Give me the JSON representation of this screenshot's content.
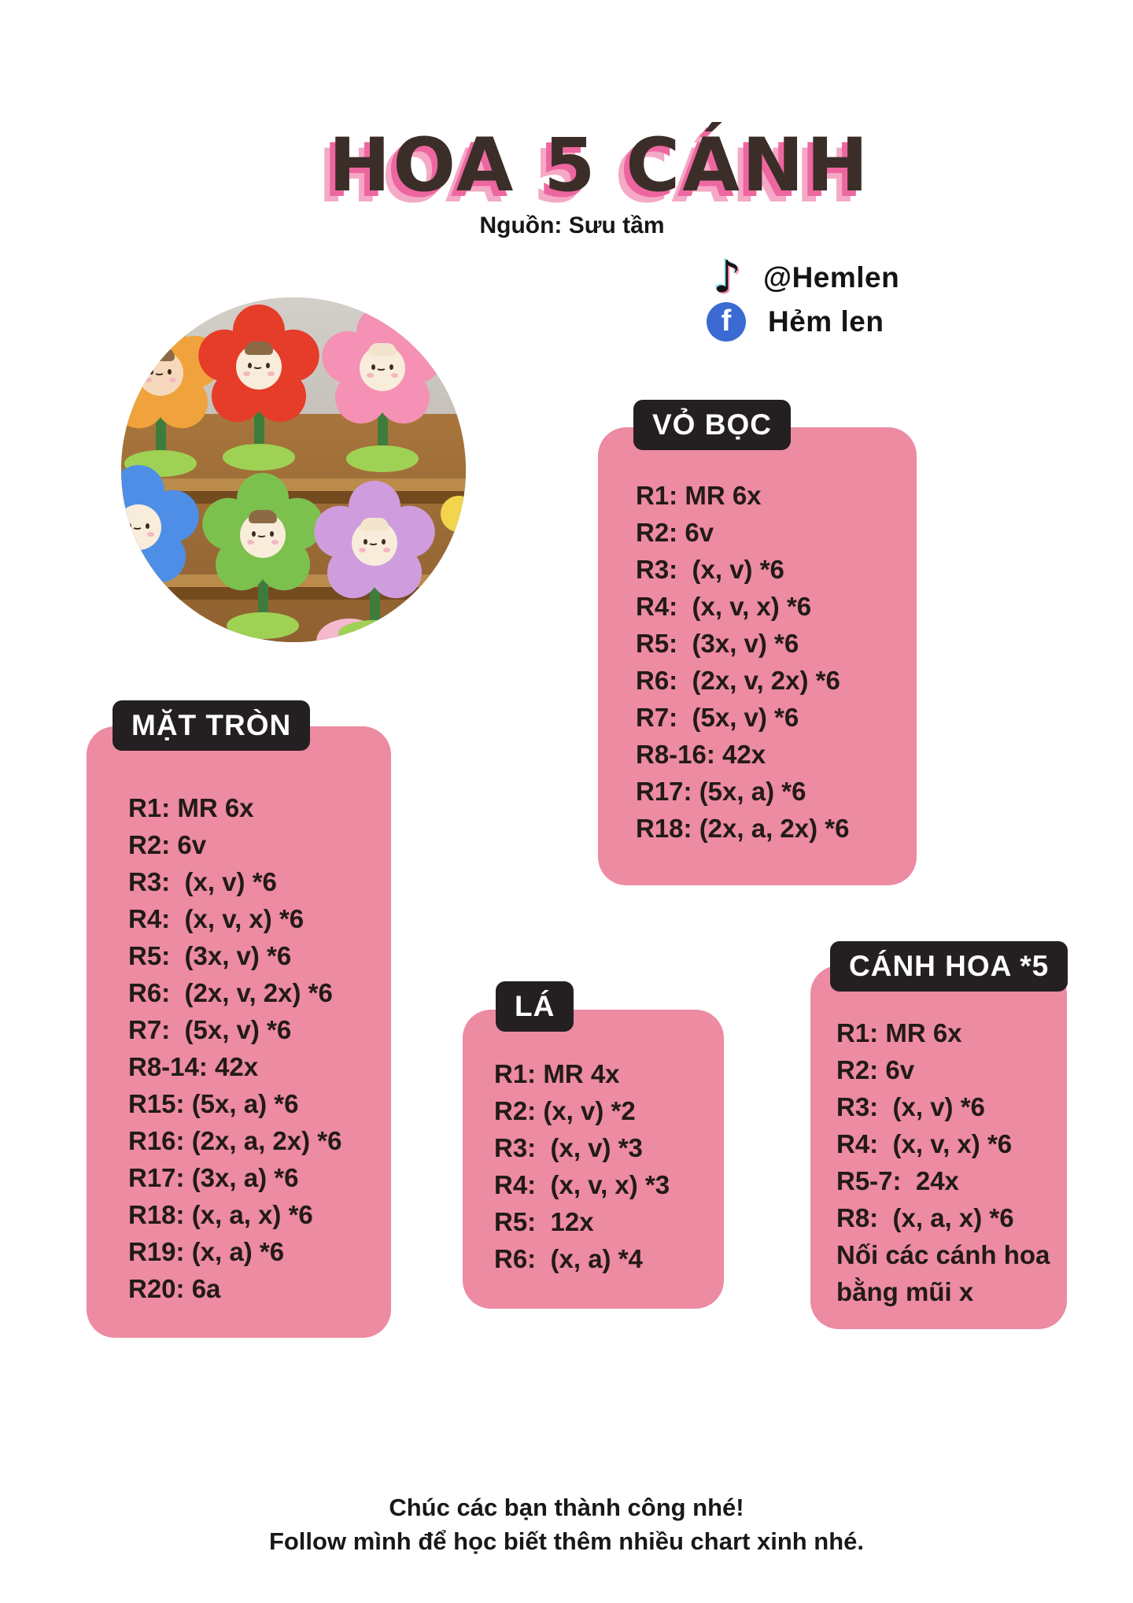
{
  "page": {
    "title": "HOA 5 CÁNH",
    "subtitle": "Nguồn: Sưu tầm"
  },
  "social": {
    "tiktok": {
      "icon": "tiktok-icon",
      "handle": "@Hemlen"
    },
    "facebook": {
      "icon": "facebook-icon",
      "handle": "Hẻm len"
    }
  },
  "photo": {
    "alt": "Crocheted smiling flower dolls on wooden shelves",
    "flower_colors": [
      "orange",
      "red",
      "pink",
      "blue",
      "green",
      "purple"
    ]
  },
  "sections": [
    {
      "label": "VỎ BỌC",
      "lines": [
        "R1: MR 6x",
        "R2: 6v",
        "R3:  (x, v) *6",
        "R4:  (x, v, x) *6",
        "R5:  (3x, v) *6",
        "R6:  (2x, v, 2x) *6",
        "R7:  (5x, v) *6",
        "R8-16: 42x",
        "R17: (5x, a) *6",
        "R18: (2x, a, 2x) *6"
      ]
    },
    {
      "label": "MẶT TRÒN",
      "lines": [
        "R1: MR 6x",
        "R2: 6v",
        "R3:  (x, v) *6",
        "R4:  (x, v, x) *6",
        "R5:  (3x, v) *6",
        "R6:  (2x, v, 2x) *6",
        "R7:  (5x, v) *6",
        "R8-14: 42x",
        "R15: (5x, a) *6",
        "R16: (2x, a, 2x) *6",
        "R17: (3x, a) *6",
        "R18: (x, a, x) *6",
        "R19: (x, a) *6",
        "R20: 6a"
      ]
    },
    {
      "label": "LÁ",
      "lines": [
        "R1: MR 4x",
        "R2: (x, v) *2",
        "R3:  (x, v) *3",
        "R4:  (x, v, x) *3",
        "R5:  12x",
        "R6:  (x, a) *4"
      ]
    },
    {
      "label": "CÁNH HOA *5",
      "lines": [
        "R1: MR 6x",
        "R2: 6v",
        "R3:  (x, v) *6",
        "R4:  (x, v, x) *6",
        "R5-7:  24x",
        "R8:  (x, a, x) *6",
        "Nối các cánh hoa",
        "bằng mũi x"
      ]
    }
  ],
  "footer": {
    "line1": "Chúc các bạn thành công nhé!",
    "line2": "Follow mình để học biết thêm nhiều chart xinh nhé."
  },
  "colors": {
    "card_pink": "#ec8ba1",
    "label_dark": "#242021",
    "title_brown": "#3b2e28",
    "title_shadow_pink": "#ee66a0",
    "title_shadow_light_pink": "#f4a9c6",
    "facebook_blue": "#3b6ad3"
  }
}
